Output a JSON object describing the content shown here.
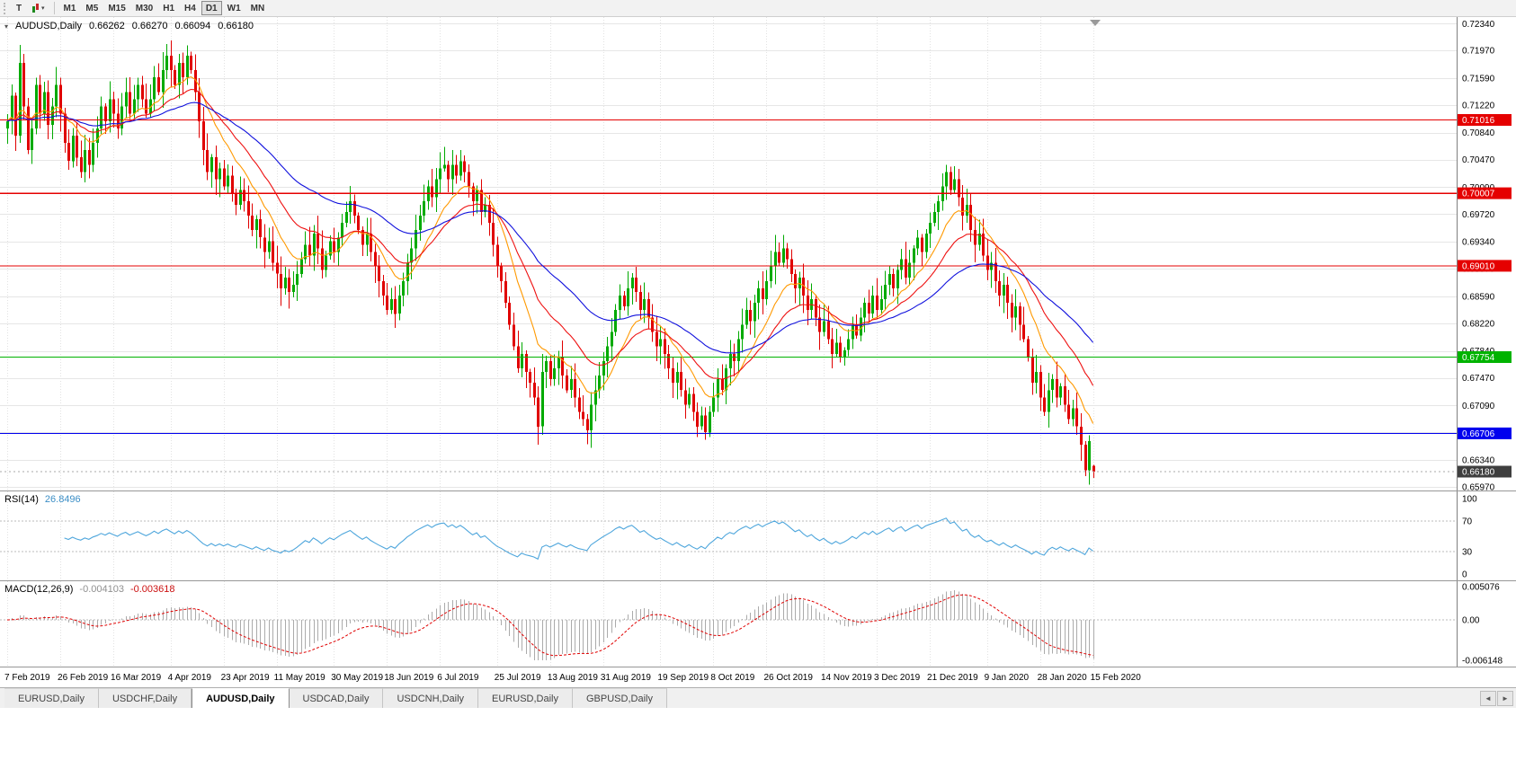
{
  "toolbar": {
    "tool_button_label": "T",
    "chart_type_button": {
      "icon": "candlestick-chart-icon",
      "dropdown_icon": "▾"
    },
    "timeframes": [
      "M1",
      "M5",
      "M15",
      "M30",
      "H1",
      "H4",
      "D1",
      "W1",
      "MN"
    ],
    "active_timeframe": "D1"
  },
  "chart_header": {
    "collapse_icon": "▾",
    "symbol": "AUDUSD,Daily",
    "open": "0.66262",
    "high": "0.66270",
    "low": "0.66094",
    "close": "0.66180"
  },
  "indicators": {
    "rsi": {
      "name": "RSI(14)",
      "value": "26.8496"
    },
    "macd": {
      "name": "MACD(12,26,9)",
      "value_macd": "-0.004103",
      "value_signal": "-0.003618"
    }
  },
  "chart_data": {
    "type": "candlestick",
    "symbol": "AUDUSD",
    "timeframe": "Daily",
    "ohlc_last": {
      "open": 0.66262,
      "high": 0.6627,
      "low": 0.66094,
      "close": 0.6618
    },
    "candle_up_color": "#00AA00",
    "candle_down_color": "#E00000",
    "y_axis": {
      "price_top": 0.7243,
      "price_bottom": 0.6592,
      "decimals": 5,
      "tick_values": [
        0.7234,
        0.7197,
        0.7159,
        0.7122,
        0.7084,
        0.7047,
        0.7009,
        0.6972,
        0.6934,
        0.6897,
        0.6859,
        0.6822,
        0.6784,
        0.6747,
        0.6709,
        0.6672,
        0.6634,
        0.6597
      ]
    },
    "x_axis": {
      "labels": [
        "7 Feb 2019",
        "26 Feb 2019",
        "16 Mar 2019",
        "4 Apr 2019",
        "23 Apr 2019",
        "11 May 2019",
        "30 May 2019",
        "18 Jun 2019",
        "6 Jul 2019",
        "25 Jul 2019",
        "13 Aug 2019",
        "31 Aug 2019",
        "19 Sep 2019",
        "8 Oct 2019",
        "26 Oct 2019",
        "14 Nov 2019",
        "3 Dec 2019",
        "21 Dec 2019",
        "9 Jan 2020",
        "28 Jan 2020",
        "15 Feb 2020"
      ],
      "bar_indices": [
        0,
        13,
        26,
        40,
        53,
        66,
        80,
        93,
        106,
        120,
        133,
        146,
        160,
        173,
        186,
        200,
        213,
        226,
        240,
        253,
        266
      ]
    },
    "bars": {
      "count": 267,
      "closes": [
        0.71,
        0.7135,
        0.708,
        0.718,
        0.712,
        0.706,
        0.709,
        0.715,
        0.711,
        0.714,
        0.7095,
        0.712,
        0.715,
        0.711,
        0.707,
        0.7045,
        0.708,
        0.705,
        0.703,
        0.706,
        0.704,
        0.707,
        0.709,
        0.712,
        0.71,
        0.713,
        0.711,
        0.709,
        0.712,
        0.714,
        0.711,
        0.713,
        0.715,
        0.713,
        0.711,
        0.713,
        0.716,
        0.714,
        0.717,
        0.719,
        0.717,
        0.715,
        0.718,
        0.716,
        0.719,
        0.717,
        0.714,
        0.71,
        0.706,
        0.703,
        0.705,
        0.702,
        0.7035,
        0.701,
        0.7025,
        0.7,
        0.6985,
        0.7005,
        0.699,
        0.697,
        0.695,
        0.6965,
        0.694,
        0.692,
        0.6935,
        0.6905,
        0.689,
        0.687,
        0.6885,
        0.6865,
        0.6875,
        0.689,
        0.691,
        0.693,
        0.6915,
        0.6945,
        0.6925,
        0.6895,
        0.6915,
        0.6935,
        0.692,
        0.694,
        0.696,
        0.6975,
        0.699,
        0.697,
        0.695,
        0.693,
        0.6945,
        0.692,
        0.69,
        0.688,
        0.686,
        0.684,
        0.6855,
        0.6835,
        0.686,
        0.688,
        0.6905,
        0.6925,
        0.695,
        0.697,
        0.699,
        0.701,
        0.6995,
        0.702,
        0.7035,
        0.704,
        0.702,
        0.704,
        0.7025,
        0.7045,
        0.703,
        0.701,
        0.699,
        0.7005,
        0.6975,
        0.6985,
        0.696,
        0.693,
        0.69,
        0.688,
        0.685,
        0.682,
        0.679,
        0.676,
        0.678,
        0.6755,
        0.674,
        0.672,
        0.668,
        0.6755,
        0.677,
        0.6745,
        0.676,
        0.6775,
        0.675,
        0.673,
        0.6745,
        0.672,
        0.67,
        0.669,
        0.6675,
        0.671,
        0.673,
        0.675,
        0.677,
        0.679,
        0.681,
        0.684,
        0.686,
        0.6845,
        0.687,
        0.6885,
        0.6865,
        0.684,
        0.6855,
        0.683,
        0.681,
        0.679,
        0.68,
        0.678,
        0.676,
        0.674,
        0.6755,
        0.673,
        0.671,
        0.6725,
        0.67,
        0.668,
        0.6695,
        0.6672,
        0.67,
        0.672,
        0.6745,
        0.673,
        0.676,
        0.678,
        0.677,
        0.68,
        0.682,
        0.684,
        0.6825,
        0.685,
        0.687,
        0.6855,
        0.688,
        0.69,
        0.692,
        0.6905,
        0.6925,
        0.691,
        0.689,
        0.687,
        0.6885,
        0.686,
        0.684,
        0.6855,
        0.683,
        0.681,
        0.6825,
        0.68,
        0.678,
        0.6795,
        0.6775,
        0.6785,
        0.68,
        0.682,
        0.6805,
        0.683,
        0.685,
        0.6835,
        0.686,
        0.684,
        0.6855,
        0.6875,
        0.689,
        0.687,
        0.6895,
        0.691,
        0.6885,
        0.6905,
        0.6925,
        0.694,
        0.692,
        0.6945,
        0.696,
        0.6975,
        0.699,
        0.701,
        0.703,
        0.7005,
        0.702,
        0.6995,
        0.697,
        0.6985,
        0.695,
        0.693,
        0.6945,
        0.6915,
        0.6895,
        0.6905,
        0.688,
        0.686,
        0.6875,
        0.685,
        0.683,
        0.6845,
        0.682,
        0.68,
        0.6775,
        0.674,
        0.6755,
        0.672,
        0.67,
        0.673,
        0.6745,
        0.672,
        0.6735,
        0.671,
        0.669,
        0.6705,
        0.668,
        0.6655,
        0.662,
        0.666,
        0.6618
      ],
      "overrides": {
        "3": [
          0.708,
          0.7205,
          0.707,
          0.718
        ],
        "39": [
          0.717,
          0.7206,
          0.7158,
          0.719
        ],
        "44": [
          0.716,
          0.7204,
          0.715,
          0.719
        ],
        "130": [
          0.672,
          0.6735,
          0.6655,
          0.668
        ],
        "171": [
          0.6695,
          0.6706,
          0.6662,
          0.6672
        ],
        "265": [
          0.662,
          0.6668,
          0.66,
          0.666
        ],
        "266": [
          0.66262,
          0.6627,
          0.66094,
          0.6618
        ]
      }
    },
    "moving_averages": [
      {
        "period": 12,
        "color": "#FF9900"
      },
      {
        "period": 24,
        "color": "#EE1111"
      },
      {
        "period": 52,
        "color": "#1111DD"
      }
    ],
    "hlines": [
      {
        "price": 0.71016,
        "color": "#E50000"
      },
      {
        "price": 0.70007,
        "color": "#E50000"
      },
      {
        "price": 0.6901,
        "color": "#E50000"
      },
      {
        "price": 0.67754,
        "color": "#00B300"
      },
      {
        "price": 0.66706,
        "color": "#0000EE"
      }
    ],
    "current_price_label": {
      "price": 0.6618,
      "bg": "#3F3F3F"
    },
    "rsi_panel": {
      "period": 14,
      "color": "#4EA6DC",
      "levels": [
        70,
        30
      ],
      "ticks": [
        100,
        70,
        30,
        0
      ],
      "range": [
        0,
        100
      ]
    },
    "macd_panel": {
      "fast": 12,
      "slow": 26,
      "signal_period": 9,
      "histogram_color": "#ABABAB",
      "signal_color": "#E00000",
      "range": [
        -0.006148,
        0.005076
      ],
      "ticks": [
        {
          "label": "0.005076",
          "value": 0.005076
        },
        {
          "label": "0.00",
          "value": 0
        },
        {
          "label": "-0.006148",
          "value": -0.006148
        }
      ]
    }
  },
  "tabs": {
    "items": [
      {
        "label": "EURUSD,Daily",
        "active": false
      },
      {
        "label": "USDCHF,Daily",
        "active": false
      },
      {
        "label": "AUDUSD,Daily",
        "active": true
      },
      {
        "label": "USDCAD,Daily",
        "active": false
      },
      {
        "label": "USDCNH,Daily",
        "active": false
      },
      {
        "label": "EURUSD,Daily",
        "active": false
      },
      {
        "label": "GBPUSD,Daily",
        "active": false
      }
    ],
    "scroll_left": "◄",
    "scroll_right": "►"
  }
}
